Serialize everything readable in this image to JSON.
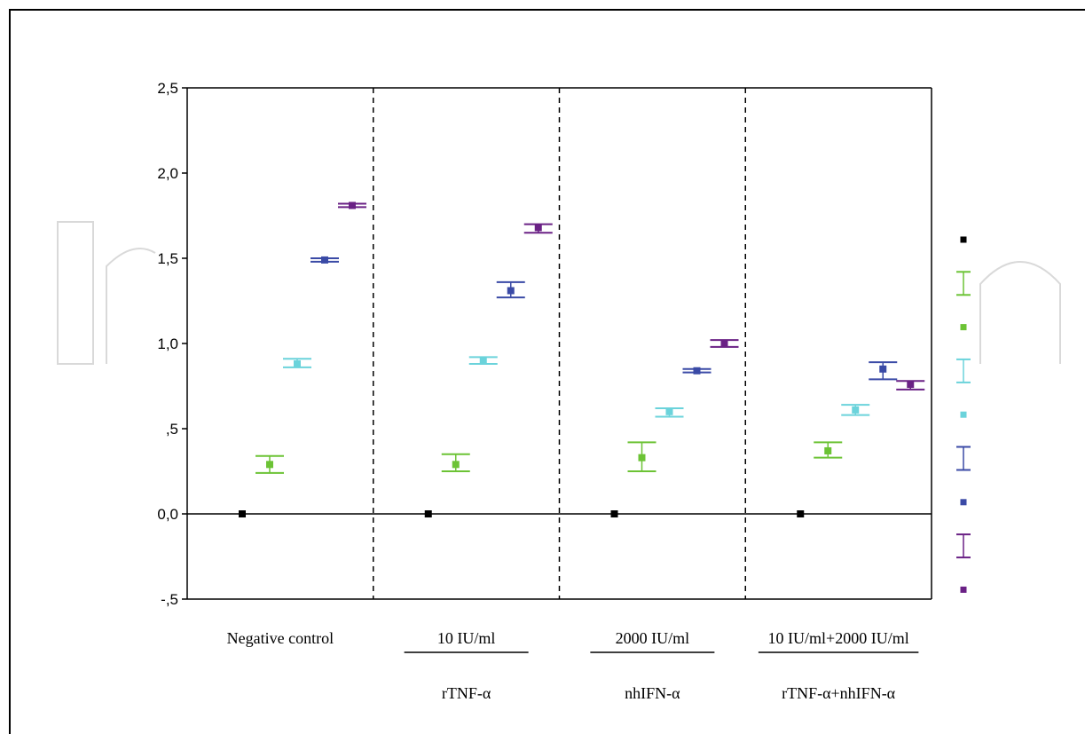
{
  "chart_data": {
    "type": "scatter",
    "title": "",
    "xlabel": "",
    "ylabel": "",
    "ylim": [
      -0.5,
      2.5
    ],
    "yticks": [
      {
        "value": 2.5,
        "label": "2,5"
      },
      {
        "value": 2.0,
        "label": "2,0"
      },
      {
        "value": 1.5,
        "label": "1,5"
      },
      {
        "value": 1.0,
        "label": "1,0"
      },
      {
        "value": 0.5,
        "label": ",5"
      },
      {
        "value": 0.0,
        "label": "0,0"
      },
      {
        "value": -0.5,
        "label": "-,5"
      }
    ],
    "groups": [
      {
        "label": "Negative control",
        "sublabel": ""
      },
      {
        "label": "10 IU/ml",
        "sublabel": "rTNF-α"
      },
      {
        "label": "2000 IU/ml",
        "sublabel": "nhIFN-α"
      },
      {
        "label": "10 IU/ml+2000 IU/ml",
        "sublabel": "rTNF-α+nhIFN-α"
      }
    ],
    "series": [
      {
        "color": "#000000",
        "error_bars": false,
        "points": [
          {
            "mean": 0.0
          },
          {
            "mean": 0.0
          },
          {
            "mean": 0.0
          },
          {
            "mean": 0.0
          }
        ]
      },
      {
        "color": "#6cc335",
        "error_bars": true,
        "points": [
          {
            "mean": 0.29,
            "low": 0.24,
            "high": 0.34
          },
          {
            "mean": 0.29,
            "low": 0.25,
            "high": 0.35
          },
          {
            "mean": 0.33,
            "low": 0.25,
            "high": 0.42
          },
          {
            "mean": 0.37,
            "low": 0.33,
            "high": 0.42
          }
        ]
      },
      {
        "color": "#6bd3db",
        "error_bars": true,
        "points": [
          {
            "mean": 0.88,
            "low": 0.86,
            "high": 0.91
          },
          {
            "mean": 0.9,
            "low": 0.88,
            "high": 0.92
          },
          {
            "mean": 0.6,
            "low": 0.57,
            "high": 0.62
          },
          {
            "mean": 0.61,
            "low": 0.58,
            "high": 0.64
          }
        ]
      },
      {
        "color": "#3a4aa6",
        "error_bars": true,
        "points": [
          {
            "mean": 1.49,
            "low": 1.48,
            "high": 1.5
          },
          {
            "mean": 1.31,
            "low": 1.27,
            "high": 1.36
          },
          {
            "mean": 0.84,
            "low": 0.83,
            "high": 0.85
          },
          {
            "mean": 0.85,
            "low": 0.79,
            "high": 0.89
          }
        ]
      },
      {
        "color": "#6a2185",
        "error_bars": true,
        "points": [
          {
            "mean": 1.81,
            "low": 1.8,
            "high": 1.82
          },
          {
            "mean": 1.68,
            "low": 1.65,
            "high": 1.7
          },
          {
            "mean": 1.0,
            "low": 0.98,
            "high": 1.02
          },
          {
            "mean": 0.76,
            "low": 0.73,
            "high": 0.78
          }
        ]
      }
    ],
    "legend": {
      "placement": "right",
      "entries": [
        {
          "color": "#000000",
          "kind": "point"
        },
        {
          "color": "#6cc335",
          "kind": "errorbar"
        },
        {
          "color": "#6cc335",
          "kind": "point"
        },
        {
          "color": "#6bd3db",
          "kind": "errorbar"
        },
        {
          "color": "#6bd3db",
          "kind": "point"
        },
        {
          "color": "#3a4aa6",
          "kind": "errorbar"
        },
        {
          "color": "#3a4aa6",
          "kind": "point"
        },
        {
          "color": "#6a2185",
          "kind": "errorbar"
        },
        {
          "color": "#6a2185",
          "kind": "point"
        }
      ]
    },
    "group_separators": "dashed",
    "grid": false
  }
}
